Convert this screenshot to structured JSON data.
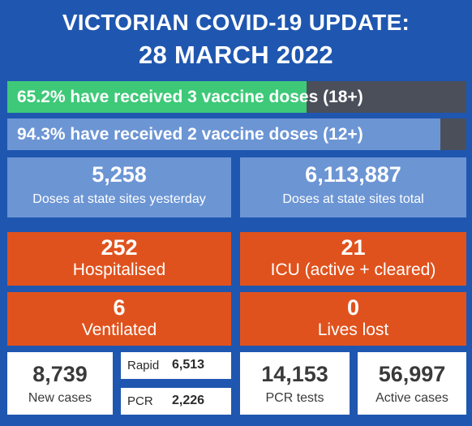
{
  "header": {
    "line1": "VICTORIAN COVID-19 UPDATE:",
    "line2": "28 MARCH 2022"
  },
  "vaccine_bars": [
    {
      "label": "65.2% have received 3 vaccine doses (18+)",
      "percent": 65.2
    },
    {
      "label": "94.3% have received 2 vaccine doses (12+)",
      "percent": 94.3
    }
  ],
  "doses": {
    "yesterday": {
      "value": "5,258",
      "label": "Doses at state sites yesterday"
    },
    "total": {
      "value": "6,113,887",
      "label": "Doses at state sites total"
    }
  },
  "hospital": {
    "hospitalised": {
      "value": "252",
      "label": "Hospitalised"
    },
    "icu": {
      "value": "21",
      "label": "ICU (active + cleared)"
    },
    "ventilated": {
      "value": "6",
      "label": "Ventilated"
    },
    "lives_lost": {
      "value": "0",
      "label": "Lives lost"
    }
  },
  "cases": {
    "new": {
      "value": "8,739",
      "label": "New cases"
    },
    "rapid": {
      "label": "Rapid",
      "value": "6,513"
    },
    "pcr": {
      "label": "PCR",
      "value": "2,226"
    },
    "pcr_tests": {
      "value": "14,153",
      "label": "PCR tests"
    },
    "active": {
      "value": "56,997",
      "label": "Active cases"
    }
  },
  "colors": {
    "background": "#1f57b0",
    "vaccine3": "#3ec978",
    "vaccine2": "#6c95d4",
    "bar_track": "#4a4f5a",
    "stat_blue": "#6c95d4",
    "stat_orange": "#e0521d",
    "card_white": "#ffffff"
  }
}
